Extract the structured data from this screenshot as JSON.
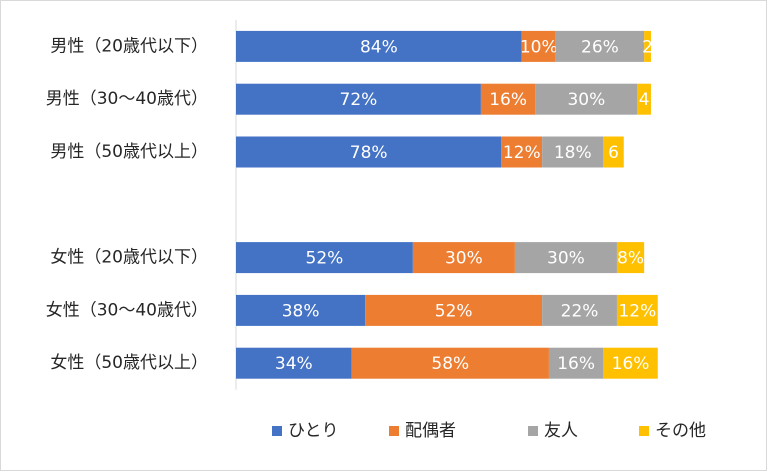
{
  "chart_data": {
    "type": "bar",
    "orientation": "horizontal",
    "stacked": true,
    "categories": [
      "男性（20歳代以下）",
      "男性（30～40歳代）",
      "男性（50歳代以上）",
      "",
      "女性（20歳代以下）",
      "女性（30～40歳代）",
      "女性（50歳代以上）"
    ],
    "series": [
      {
        "name": "ひとり",
        "color": "#4472C4",
        "values": [
          84,
          72,
          78,
          null,
          52,
          38,
          34
        ],
        "labels": [
          "84%",
          "72%",
          "78%",
          "",
          "52%",
          "38%",
          "34%"
        ]
      },
      {
        "name": "配偶者",
        "color": "#ED7D31",
        "values": [
          10,
          16,
          12,
          null,
          30,
          52,
          58
        ],
        "labels": [
          "10%",
          "16%",
          "12%",
          "",
          "30%",
          "52%",
          "58%"
        ]
      },
      {
        "name": "友人",
        "color": "#A5A5A5",
        "values": [
          26,
          30,
          18,
          null,
          30,
          22,
          16
        ],
        "labels": [
          "26%",
          "30%",
          "18%",
          "",
          "30%",
          "22%",
          "16%"
        ]
      },
      {
        "name": "その他",
        "color": "#FFC000",
        "values": [
          2,
          4,
          6,
          null,
          8,
          12,
          16
        ],
        "labels": [
          "2",
          "4",
          "6",
          "",
          "8%",
          "12%",
          "16%"
        ]
      }
    ],
    "xlim": [
      0,
      147
    ],
    "grid": false,
    "legend_position": "bottom",
    "title": "",
    "xlabel": "",
    "ylabel": ""
  }
}
